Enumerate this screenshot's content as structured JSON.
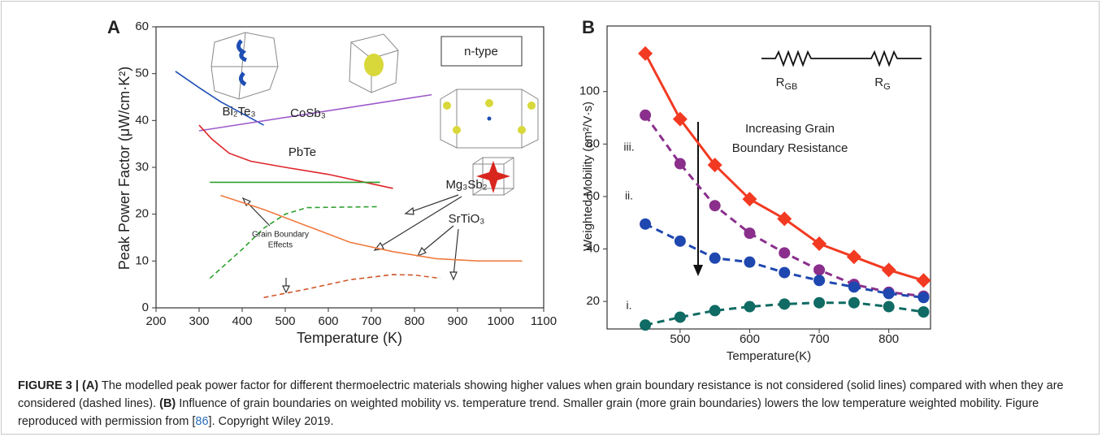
{
  "chart_data": [
    {
      "type": "line",
      "panel": "A",
      "xlabel": "Temperature (K)",
      "ylabel": "Peak Power Factor (μW/cm·K²)",
      "xlim": [
        200,
        1100
      ],
      "ylim": [
        0,
        60
      ],
      "xticks": [
        200,
        300,
        400,
        500,
        600,
        700,
        800,
        900,
        1000,
        1100
      ],
      "yticks": [
        0,
        10,
        20,
        30,
        40,
        50,
        60
      ],
      "series": [
        {
          "color": "#1f4fb4",
          "dashed": false,
          "x": [
            245,
            300,
            350,
            400,
            450
          ],
          "values": [
            50.5,
            47,
            44,
            41.5,
            39
          ]
        },
        {
          "color": "#9b59c9",
          "dashed": false,
          "x": [
            300,
            840
          ],
          "values": [
            37.8,
            45.5
          ]
        },
        {
          "color": "#e0242a",
          "dashed": false,
          "x": [
            300,
            330,
            370,
            420,
            500,
            600,
            700,
            750
          ],
          "values": [
            39,
            36,
            33,
            31.3,
            30,
            28.5,
            26.5,
            25.5
          ]
        },
        {
          "color": "#2ca02c",
          "dashed": false,
          "x": [
            325,
            720
          ],
          "values": [
            26.8,
            26.8
          ]
        },
        {
          "color": "#2ca02c",
          "dashed": true,
          "x": [
            325,
            400,
            450,
            500,
            550,
            720
          ],
          "values": [
            6.3,
            12.5,
            17,
            20,
            21.4,
            21.6
          ]
        },
        {
          "color": "#f07b3f",
          "dashed": false,
          "x": [
            350,
            450,
            550,
            650,
            750,
            850,
            950,
            1050
          ],
          "values": [
            24,
            21,
            17.5,
            14,
            12,
            10.5,
            10,
            10
          ]
        },
        {
          "color": "#d0572a",
          "dashed": true,
          "x": [
            450,
            550,
            650,
            750,
            800,
            860
          ],
          "values": [
            2.2,
            4,
            6,
            7.1,
            7,
            6.3
          ]
        }
      ],
      "annotations": [
        "n-type",
        "Bi₂Te₃",
        "CoSb₃",
        "PbTe",
        "Mg₃Sb₂",
        "SrTiO₃",
        "Grain Boundary",
        "Effects"
      ]
    },
    {
      "type": "line",
      "panel": "B",
      "xlabel": "Temperature(K)",
      "ylabel": "Weighted Mobility (cm²/V·s)",
      "xlim": [
        395,
        860
      ],
      "ylim": [
        9.5,
        125
      ],
      "xticks": [
        500,
        600,
        700,
        800
      ],
      "yticks": [
        20,
        40,
        60,
        80,
        100
      ],
      "x": [
        450,
        500,
        550,
        600,
        650,
        700,
        750,
        800,
        850
      ],
      "series": [
        {
          "color": "#f23a22",
          "dashed": false,
          "marker": "diamond",
          "values": [
            114.5,
            89.5,
            72,
            59,
            51.5,
            42,
            37,
            32,
            28
          ]
        },
        {
          "color": "#8a2f8c",
          "dashed": true,
          "marker": "circle",
          "values": [
            91,
            72.5,
            56.5,
            46,
            38.5,
            32,
            26.5,
            23.5,
            22
          ]
        },
        {
          "color": "#1f47b0",
          "dashed": true,
          "marker": "circle",
          "values": [
            49.5,
            43,
            36.5,
            35,
            31,
            28,
            25.5,
            23,
            21.5
          ]
        },
        {
          "color": "#0f6b63",
          "dashed": true,
          "marker": "circle",
          "values": [
            11,
            14,
            16.5,
            18,
            19,
            19.5,
            19.5,
            18,
            16
          ]
        }
      ],
      "annotations": [
        "iii.",
        "ii.",
        "i.",
        "Increasing Grain",
        "Boundary Resistance"
      ],
      "resistors": [
        {
          "base": "R",
          "sub": "GB"
        },
        {
          "base": "R",
          "sub": "G"
        }
      ]
    }
  ],
  "caption": {
    "figure": "FIGURE 3 |",
    "a_label": "(A)",
    "a_text": "The modelled peak power factor for different thermoelectric materials showing higher values when grain boundary resistance is not considered (solid lines) compared with when they are considered (dashed lines).",
    "b_label": "(B)",
    "b_text": "Influence of grain boundaries on weighted mobility vs. temperature trend. Smaller grain (more grain boundaries) lowers the low temperature weighted mobility. Figure reproduced with permission from [",
    "ref": "86",
    "end": "]. Copyright Wiley 2019."
  }
}
